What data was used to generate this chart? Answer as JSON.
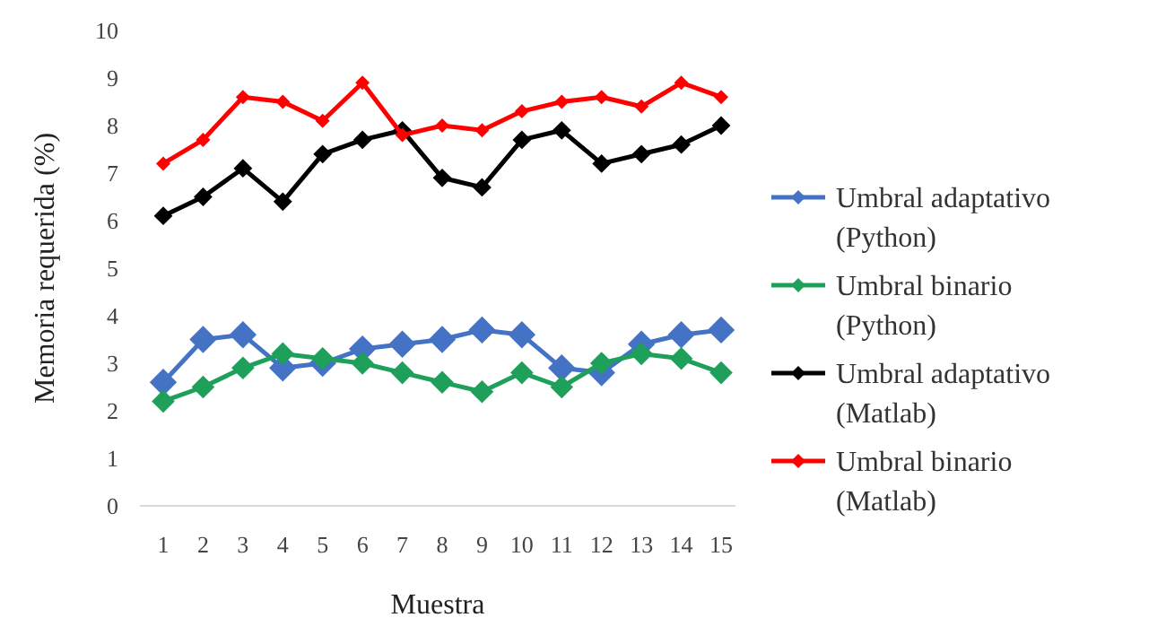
{
  "chart_data": {
    "type": "line",
    "xlabel": "Muestra",
    "ylabel": "Memoria requerida (%)",
    "categories": [
      "1",
      "2",
      "3",
      "4",
      "5",
      "6",
      "7",
      "8",
      "9",
      "10",
      "11",
      "12",
      "13",
      "14",
      "15"
    ],
    "ylim": [
      0,
      10
    ],
    "yticks": [
      0,
      1,
      2,
      3,
      4,
      5,
      6,
      7,
      8,
      9,
      10
    ],
    "legend": "right",
    "marker": "diamond",
    "grid": false,
    "series": [
      {
        "name": "Umbral adaptativo (Python)",
        "color": "#4472c4",
        "values": [
          2.6,
          3.5,
          3.6,
          2.9,
          3.0,
          3.3,
          3.4,
          3.5,
          3.7,
          3.6,
          2.9,
          2.8,
          3.4,
          3.6,
          3.7
        ]
      },
      {
        "name": "Umbral binario (Python)",
        "color": "#1ea05a",
        "values": [
          2.2,
          2.5,
          2.9,
          3.2,
          3.1,
          3.0,
          2.8,
          2.6,
          2.4,
          2.8,
          2.5,
          3.0,
          3.2,
          3.1,
          2.8
        ]
      },
      {
        "name": "Umbral adaptativo (Matlab)",
        "color": "#000000",
        "values": [
          6.1,
          6.5,
          7.1,
          6.4,
          7.4,
          7.7,
          7.9,
          6.9,
          6.7,
          7.7,
          7.9,
          7.2,
          7.4,
          7.6,
          8.0
        ]
      },
      {
        "name": "Umbral binario (Matlab)",
        "color": "#ff0000",
        "values": [
          7.2,
          7.7,
          8.6,
          8.5,
          8.1,
          8.9,
          7.8,
          8.0,
          7.9,
          8.3,
          8.5,
          8.6,
          8.4,
          8.9,
          8.6
        ]
      }
    ]
  }
}
